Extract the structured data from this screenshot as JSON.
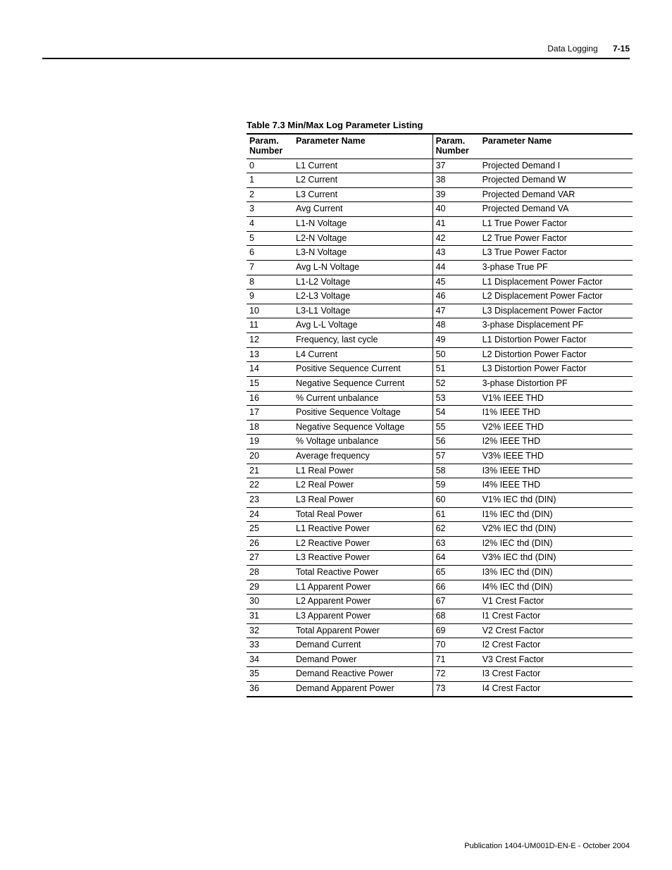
{
  "header": {
    "section": "Data Logging",
    "page": "7-15"
  },
  "caption": "Table 7.3 Min/Max Log Parameter Listing",
  "columns": {
    "paramNumber": "Param. Number",
    "paramName": "Parameter Name"
  },
  "footer": "Publication 1404-UM001D-EN-E - October 2004",
  "rows": [
    {
      "n1": "0",
      "p1": "L1 Current",
      "n2": "37",
      "p2": "Projected Demand I"
    },
    {
      "n1": "1",
      "p1": "L2 Current",
      "n2": "38",
      "p2": "Projected Demand W"
    },
    {
      "n1": "2",
      "p1": "L3 Current",
      "n2": "39",
      "p2": "Projected Demand VAR"
    },
    {
      "n1": "3",
      "p1": "Avg Current",
      "n2": "40",
      "p2": "Projected Demand VA"
    },
    {
      "n1": "4",
      "p1": "L1-N Voltage",
      "n2": "41",
      "p2": "L1 True Power Factor"
    },
    {
      "n1": "5",
      "p1": "L2-N Voltage",
      "n2": "42",
      "p2": "L2 True Power Factor"
    },
    {
      "n1": "6",
      "p1": "L3-N Voltage",
      "n2": "43",
      "p2": "L3 True Power Factor"
    },
    {
      "n1": "7",
      "p1": "Avg L-N Voltage",
      "n2": "44",
      "p2": "3-phase True PF"
    },
    {
      "n1": "8",
      "p1": "L1-L2 Voltage",
      "n2": "45",
      "p2": "L1 Displacement Power Factor"
    },
    {
      "n1": "9",
      "p1": "L2-L3 Voltage",
      "n2": "46",
      "p2": "L2 Displacement Power Factor"
    },
    {
      "n1": "10",
      "p1": "L3-L1 Voltage",
      "n2": "47",
      "p2": "L3 Displacement Power Factor"
    },
    {
      "n1": "11",
      "p1": "Avg L-L Voltage",
      "n2": "48",
      "p2": "3-phase Displacement PF"
    },
    {
      "n1": "12",
      "p1": "Frequency, last cycle",
      "n2": "49",
      "p2": "L1 Distortion Power Factor"
    },
    {
      "n1": "13",
      "p1": "L4 Current",
      "n2": "50",
      "p2": "L2 Distortion Power Factor"
    },
    {
      "n1": "14",
      "p1": "Positive Sequence Current",
      "n2": "51",
      "p2": "L3 Distortion Power Factor"
    },
    {
      "n1": "15",
      "p1": "Negative Sequence Current",
      "n2": "52",
      "p2": "3-phase Distortion PF"
    },
    {
      "n1": "16",
      "p1": "% Current unbalance",
      "n2": "53",
      "p2": "V1% IEEE THD"
    },
    {
      "n1": "17",
      "p1": "Positive Sequence Voltage",
      "n2": "54",
      "p2": "I1% IEEE THD"
    },
    {
      "n1": "18",
      "p1": "Negative Sequence Voltage",
      "n2": "55",
      "p2": "V2% IEEE THD"
    },
    {
      "n1": "19",
      "p1": "% Voltage unbalance",
      "n2": "56",
      "p2": "I2% IEEE THD"
    },
    {
      "n1": "20",
      "p1": "Average frequency",
      "n2": "57",
      "p2": "V3% IEEE THD"
    },
    {
      "n1": "21",
      "p1": "L1 Real Power",
      "n2": "58",
      "p2": "I3% IEEE THD"
    },
    {
      "n1": "22",
      "p1": "L2 Real Power",
      "n2": "59",
      "p2": "I4% IEEE THD"
    },
    {
      "n1": "23",
      "p1": "L3 Real Power",
      "n2": "60",
      "p2": "V1% IEC thd (DIN)"
    },
    {
      "n1": "24",
      "p1": "Total Real Power",
      "n2": "61",
      "p2": "I1% IEC thd (DIN)"
    },
    {
      "n1": "25",
      "p1": "L1 Reactive Power",
      "n2": "62",
      "p2": "V2% IEC thd (DIN)"
    },
    {
      "n1": "26",
      "p1": "L2 Reactive Power",
      "n2": "63",
      "p2": "I2% IEC thd (DIN)"
    },
    {
      "n1": "27",
      "p1": "L3 Reactive Power",
      "n2": "64",
      "p2": "V3% IEC thd (DIN)"
    },
    {
      "n1": "28",
      "p1": "Total Reactive Power",
      "n2": "65",
      "p2": "I3% IEC thd (DIN)"
    },
    {
      "n1": "29",
      "p1": "L1 Apparent Power",
      "n2": "66",
      "p2": "I4% IEC thd (DIN)"
    },
    {
      "n1": "30",
      "p1": "L2 Apparent Power",
      "n2": "67",
      "p2": "V1 Crest Factor"
    },
    {
      "n1": "31",
      "p1": "L3 Apparent Power",
      "n2": "68",
      "p2": "I1 Crest Factor"
    },
    {
      "n1": "32",
      "p1": "Total Apparent Power",
      "n2": "69",
      "p2": "V2 Crest Factor"
    },
    {
      "n1": "33",
      "p1": "Demand Current",
      "n2": "70",
      "p2": "I2 Crest Factor"
    },
    {
      "n1": "34",
      "p1": "Demand Power",
      "n2": "71",
      "p2": "V3 Crest Factor"
    },
    {
      "n1": "35",
      "p1": "Demand Reactive Power",
      "n2": "72",
      "p2": "I3 Crest Factor"
    },
    {
      "n1": "36",
      "p1": "Demand Apparent Power",
      "n2": "73",
      "p2": "I4 Crest Factor"
    }
  ]
}
